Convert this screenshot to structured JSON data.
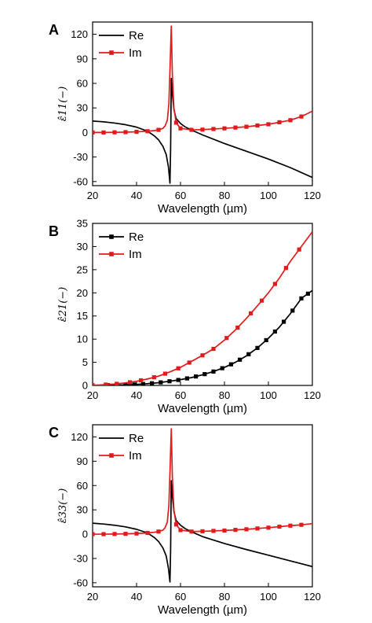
{
  "colors": {
    "re": "#000000",
    "im": "#e31a1c",
    "axis": "#000000",
    "background": "#ffffff"
  },
  "chart_data": [
    {
      "panel": "A",
      "type": "line",
      "xlabel": "Wavelength (µm)",
      "ylabel": "ε̂11(−)",
      "xlim": [
        20,
        120
      ],
      "ylim": [
        -65,
        135
      ],
      "xticks": [
        20,
        40,
        60,
        80,
        100,
        120
      ],
      "yticks": [
        -60,
        -30,
        0,
        30,
        60,
        90,
        120
      ],
      "legend_position": "top-left",
      "series": [
        {
          "name": "Re",
          "marker": "none",
          "x": [
            20,
            25,
            30,
            35,
            40,
            45,
            48,
            50,
            52,
            53.5,
            54.5,
            55.2,
            55.5,
            55.8,
            56.2,
            57,
            58,
            60,
            62,
            65,
            70,
            80,
            90,
            100,
            110,
            120
          ],
          "y": [
            14,
            13,
            11.5,
            9.5,
            6.5,
            1.5,
            -4,
            -9,
            -17,
            -27,
            -42,
            -62,
            -20,
            66,
            50,
            28,
            17,
            11,
            7,
            3,
            -3,
            -13.5,
            -23,
            -32.5,
            -43,
            -55
          ]
        },
        {
          "name": "Im",
          "marker": "square",
          "x": [
            20,
            25,
            30,
            35,
            40,
            45,
            48,
            50,
            52,
            53,
            54,
            54.7,
            55.3,
            55.8,
            56.3,
            57,
            58,
            60,
            65,
            70,
            80,
            90,
            100,
            110,
            115,
            120
          ],
          "y": [
            0,
            0,
            0.2,
            0.4,
            0.8,
            1.5,
            2.3,
            3.2,
            5,
            8,
            15,
            35,
            85,
            130,
            70,
            30,
            12,
            5,
            3.2,
            3.5,
            5,
            7,
            10,
            15,
            19.5,
            26
          ],
          "marker_x": [
            20,
            25,
            30,
            35,
            40,
            45,
            50,
            58,
            60,
            65,
            70,
            75,
            80,
            85,
            90,
            95,
            100,
            105,
            110,
            115
          ]
        }
      ]
    },
    {
      "panel": "B",
      "type": "line",
      "xlabel": "Wavelength (µm)",
      "ylabel": "ε̂21(−)",
      "xlim": [
        20,
        120
      ],
      "ylim": [
        0,
        35
      ],
      "xticks": [
        20,
        40,
        60,
        80,
        100,
        120
      ],
      "yticks": [
        0,
        5,
        10,
        15,
        20,
        25,
        30,
        35
      ],
      "legend_position": "top-left",
      "series": [
        {
          "name": "Re",
          "marker": "square",
          "x": [
            20,
            25,
            30,
            35,
            40,
            45,
            50,
            55,
            60,
            65,
            70,
            75,
            80,
            85,
            90,
            95,
            100,
            105,
            110,
            115,
            120
          ],
          "y": [
            0.0,
            0.02,
            0.06,
            0.12,
            0.22,
            0.38,
            0.6,
            0.9,
            1.25,
            1.7,
            2.3,
            3.0,
            3.9,
            5.0,
            6.4,
            8.1,
            10.2,
            12.6,
            15.5,
            18.8,
            20.5
          ],
          "marker_x": [
            27,
            31,
            35,
            39,
            43,
            47,
            51,
            55,
            59,
            63,
            67,
            71,
            75,
            79,
            83,
            87,
            91,
            95,
            99,
            103,
            107,
            111,
            115,
            118
          ]
        },
        {
          "name": "Im",
          "marker": "square",
          "x": [
            20,
            25,
            30,
            35,
            40,
            45,
            50,
            55,
            60,
            65,
            70,
            75,
            80,
            85,
            90,
            95,
            100,
            105,
            110,
            115,
            120
          ],
          "y": [
            0.05,
            0.15,
            0.3,
            0.55,
            0.9,
            1.4,
            2.0,
            2.9,
            3.9,
            5.2,
            6.5,
            7.9,
            9.8,
            12.0,
            14.5,
            17.2,
            20.0,
            23.2,
            26.8,
            30.0,
            33.2
          ],
          "marker_x": [
            20,
            26,
            31,
            37,
            42,
            48,
            53,
            59,
            64,
            70,
            75,
            81,
            86,
            92,
            97,
            103,
            108,
            114
          ]
        }
      ]
    },
    {
      "panel": "C",
      "type": "line",
      "xlabel": "Wavelength (µm)",
      "ylabel": "ε̂33(−)",
      "xlim": [
        20,
        120
      ],
      "ylim": [
        -65,
        135
      ],
      "xticks": [
        20,
        40,
        60,
        80,
        100,
        120
      ],
      "yticks": [
        -60,
        -30,
        0,
        30,
        60,
        90,
        120
      ],
      "legend_position": "top-left",
      "series": [
        {
          "name": "Re",
          "marker": "none",
          "x": [
            20,
            25,
            30,
            35,
            40,
            45,
            48,
            50,
            52,
            53.5,
            54.5,
            55.2,
            55.5,
            55.8,
            56.2,
            57,
            58,
            60,
            62,
            65,
            70,
            80,
            90,
            100,
            110,
            120
          ],
          "y": [
            13.5,
            12.5,
            11,
            9,
            6,
            1.5,
            -4,
            -9,
            -17,
            -27,
            -42,
            -59,
            -20,
            66,
            50,
            28,
            17,
            11,
            7,
            3,
            -3,
            -11.5,
            -19,
            -26,
            -33,
            -40
          ]
        },
        {
          "name": "Im",
          "marker": "square",
          "x": [
            20,
            25,
            30,
            35,
            40,
            45,
            48,
            50,
            52,
            53,
            54,
            54.7,
            55.3,
            55.8,
            56.3,
            57,
            58,
            60,
            65,
            70,
            80,
            90,
            100,
            110,
            115,
            120
          ],
          "y": [
            0,
            0,
            0.2,
            0.4,
            0.8,
            1.5,
            2.3,
            3.2,
            5,
            8,
            15,
            35,
            85,
            130,
            70,
            30,
            12,
            5,
            3.2,
            3.5,
            4.5,
            6,
            8,
            10.5,
            11.5,
            13
          ],
          "marker_x": [
            20,
            25,
            30,
            35,
            40,
            45,
            50,
            58,
            60,
            65,
            70,
            75,
            80,
            85,
            90,
            95,
            100,
            105,
            110,
            115
          ]
        }
      ]
    }
  ]
}
